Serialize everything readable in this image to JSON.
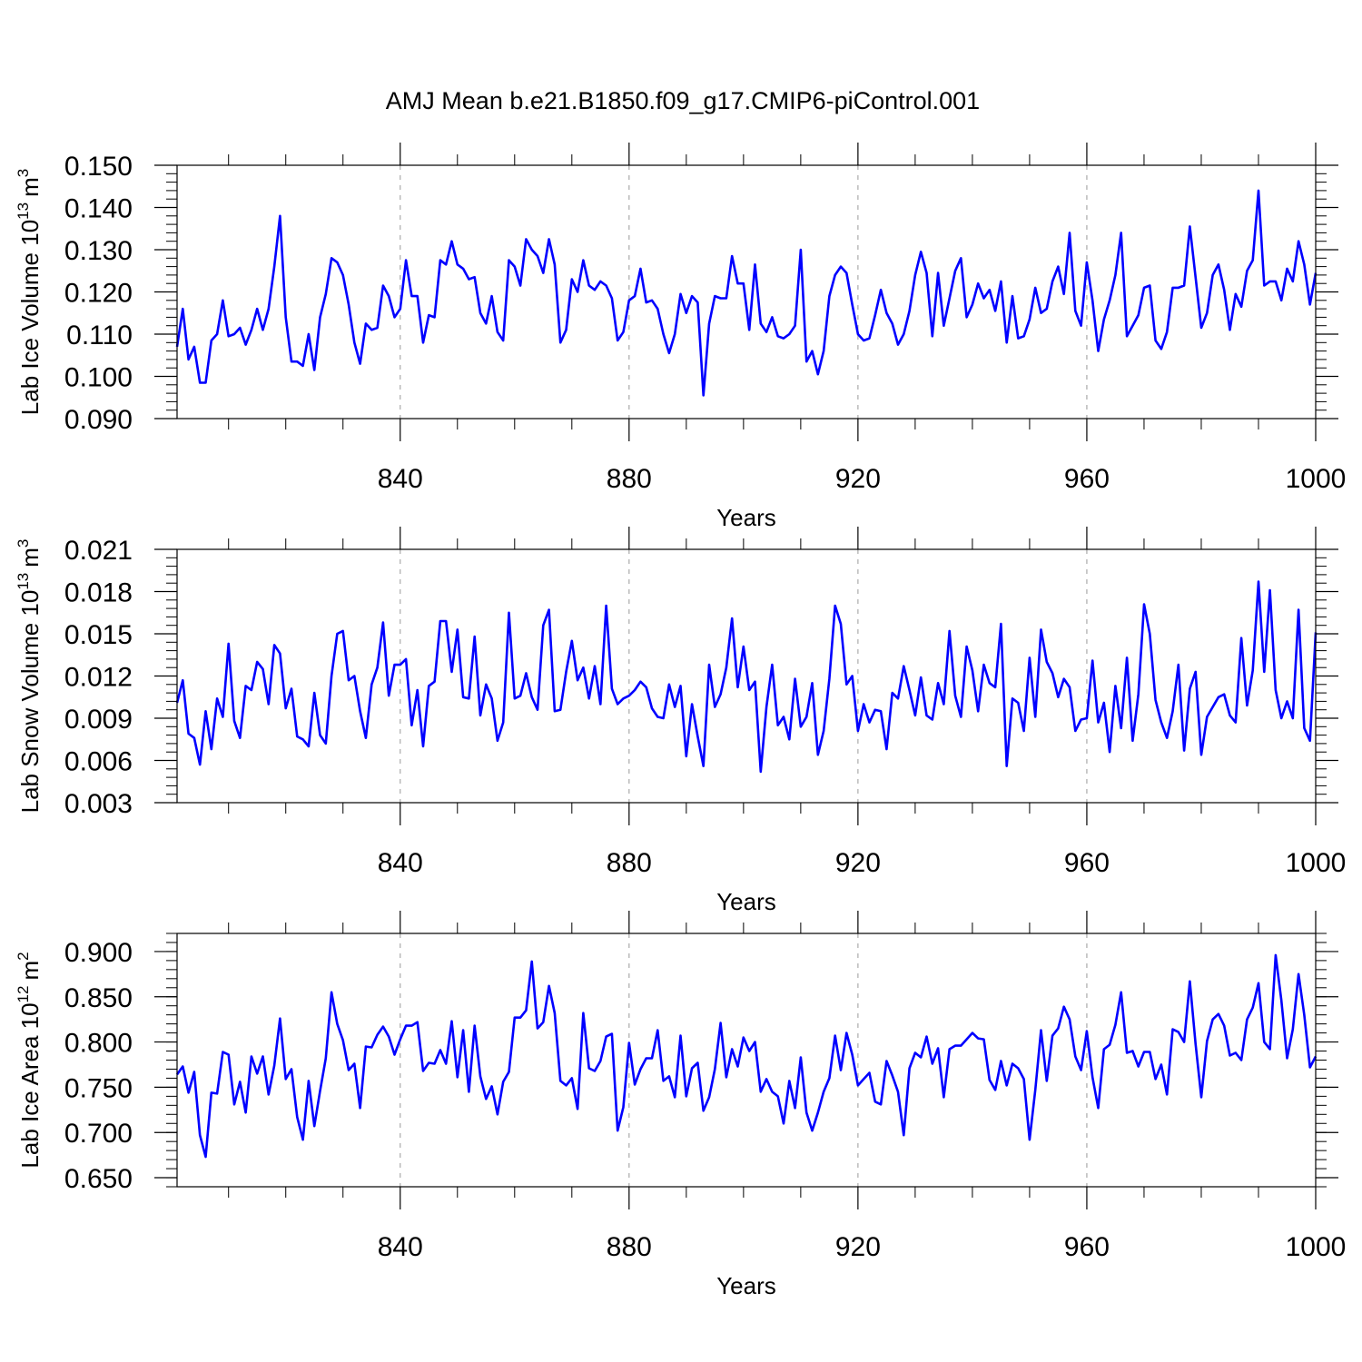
{
  "title": "AMJ Mean b.e21.B1850.f09_g17.CMIP6-piControl.001",
  "style": {
    "line_color": "#0000ff",
    "axis_color": "#000000",
    "grid_color": "#aaaaaa"
  },
  "chart_data": [
    {
      "type": "line",
      "ylabel_main": "Lab Ice Volume 10",
      "ylabel_exp": "13",
      "ylabel_unit": "m",
      "ylabel_unit_exp": "3",
      "xlabel": "Years",
      "xlim": [
        801,
        1000
      ],
      "ylim": [
        0.09,
        0.15
      ],
      "xticks": [
        840,
        880,
        920,
        960,
        1000
      ],
      "xtick_labels": [
        "840",
        "880",
        "920",
        "960",
        "1000"
      ],
      "yticks": [
        0.09,
        0.1,
        0.11,
        0.12,
        0.13,
        0.14,
        0.15
      ],
      "ytick_labels": [
        "0.090",
        "0.100",
        "0.110",
        "0.120",
        "0.130",
        "0.140",
        "0.150"
      ],
      "grid_x": true,
      "x_start": 801,
      "values": [
        0.107,
        0.116,
        0.104,
        0.107,
        0.0985,
        0.0985,
        0.1085,
        0.11,
        0.118,
        0.1095,
        0.11,
        0.1115,
        0.1075,
        0.111,
        0.116,
        0.111,
        0.116,
        0.126,
        0.138,
        0.114,
        0.1035,
        0.1035,
        0.1025,
        0.11,
        0.1015,
        0.114,
        0.1195,
        0.128,
        0.127,
        0.124,
        0.117,
        0.108,
        0.103,
        0.1125,
        0.111,
        0.1115,
        0.1215,
        0.119,
        0.114,
        0.116,
        0.1275,
        0.119,
        0.119,
        0.108,
        0.1145,
        0.114,
        0.1275,
        0.1265,
        0.132,
        0.1265,
        0.1255,
        0.123,
        0.1235,
        0.115,
        0.1125,
        0.119,
        0.1105,
        0.1085,
        0.1275,
        0.126,
        0.1215,
        0.1325,
        0.13,
        0.1285,
        0.1245,
        0.1325,
        0.1265,
        0.108,
        0.111,
        0.123,
        0.12,
        0.1275,
        0.1215,
        0.1205,
        0.1225,
        0.1215,
        0.1185,
        0.1085,
        0.1105,
        0.118,
        0.119,
        0.1255,
        0.1175,
        0.118,
        0.116,
        0.11,
        0.1055,
        0.11,
        0.1195,
        0.115,
        0.119,
        0.1175,
        0.0955,
        0.1125,
        0.119,
        0.1185,
        0.1185,
        0.1285,
        0.122,
        0.122,
        0.111,
        0.1265,
        0.1125,
        0.1105,
        0.114,
        0.1095,
        0.109,
        0.11,
        0.112,
        0.13,
        0.1035,
        0.106,
        0.1005,
        0.106,
        0.119,
        0.124,
        0.126,
        0.1245,
        0.117,
        0.11,
        0.1085,
        0.109,
        0.1145,
        0.1205,
        0.115,
        0.1125,
        0.1075,
        0.11,
        0.1155,
        0.124,
        0.1295,
        0.1245,
        0.1095,
        0.1245,
        0.112,
        0.1185,
        0.125,
        0.128,
        0.114,
        0.117,
        0.122,
        0.1185,
        0.1205,
        0.1155,
        0.1225,
        0.108,
        0.119,
        0.109,
        0.1095,
        0.1135,
        0.121,
        0.115,
        0.116,
        0.1225,
        0.126,
        0.1195,
        0.134,
        0.1155,
        0.112,
        0.127,
        0.118,
        0.106,
        0.1135,
        0.118,
        0.124,
        0.134,
        0.1095,
        0.112,
        0.1145,
        0.121,
        0.1215,
        0.1085,
        0.1065,
        0.1105,
        0.121,
        0.121,
        0.1215,
        0.1355,
        0.1235,
        0.1115,
        0.115,
        0.124,
        0.1265,
        0.1205,
        0.111,
        0.1195,
        0.1165,
        0.125,
        0.1275,
        0.144,
        0.1215,
        0.1225,
        0.1225,
        0.118,
        0.1255,
        0.1225,
        0.132,
        0.1265,
        0.117,
        0.1245
      ]
    },
    {
      "type": "line",
      "ylabel_main": "Lab Snow Volume 10",
      "ylabel_exp": "13",
      "ylabel_unit": "m",
      "ylabel_unit_exp": "3",
      "xlabel": "Years",
      "xlim": [
        801,
        1000
      ],
      "ylim": [
        0.003,
        0.021
      ],
      "xticks": [
        840,
        880,
        920,
        960,
        1000
      ],
      "xtick_labels": [
        "840",
        "880",
        "920",
        "960",
        "1000"
      ],
      "yticks": [
        0.003,
        0.006,
        0.009,
        0.012,
        0.015,
        0.018,
        0.021
      ],
      "ytick_labels": [
        "0.003",
        "0.006",
        "0.009",
        "0.012",
        "0.015",
        "0.018",
        "0.021"
      ],
      "grid_x": true,
      "x_start": 801,
      "values": [
        0.0101,
        0.0117,
        0.0079,
        0.0076,
        0.0057,
        0.0095,
        0.0068,
        0.0104,
        0.0091,
        0.0143,
        0.0088,
        0.0076,
        0.0113,
        0.011,
        0.013,
        0.0125,
        0.01,
        0.0142,
        0.0136,
        0.0097,
        0.0111,
        0.0077,
        0.0075,
        0.007,
        0.0108,
        0.0078,
        0.0072,
        0.012,
        0.015,
        0.0152,
        0.0117,
        0.012,
        0.0095,
        0.0076,
        0.0114,
        0.0126,
        0.0158,
        0.0106,
        0.0128,
        0.0128,
        0.0132,
        0.0085,
        0.011,
        0.007,
        0.0113,
        0.0116,
        0.0159,
        0.0159,
        0.0123,
        0.0153,
        0.0105,
        0.0104,
        0.0148,
        0.0092,
        0.0114,
        0.0104,
        0.0074,
        0.0087,
        0.0165,
        0.0104,
        0.0106,
        0.0122,
        0.0105,
        0.0096,
        0.0156,
        0.0167,
        0.0095,
        0.0096,
        0.0123,
        0.0145,
        0.0117,
        0.0126,
        0.0104,
        0.0127,
        0.01,
        0.017,
        0.0111,
        0.01,
        0.0104,
        0.0106,
        0.011,
        0.0116,
        0.0112,
        0.0097,
        0.0091,
        0.009,
        0.0114,
        0.0098,
        0.0113,
        0.0063,
        0.01,
        0.0077,
        0.0056,
        0.0128,
        0.0098,
        0.0107,
        0.0126,
        0.0161,
        0.0112,
        0.0141,
        0.011,
        0.0116,
        0.0052,
        0.0098,
        0.0128,
        0.0085,
        0.0091,
        0.0075,
        0.0118,
        0.0084,
        0.0091,
        0.0115,
        0.0064,
        0.0081,
        0.0118,
        0.017,
        0.0157,
        0.0114,
        0.012,
        0.0081,
        0.01,
        0.0087,
        0.0096,
        0.0095,
        0.0068,
        0.0108,
        0.0104,
        0.0127,
        0.011,
        0.0092,
        0.0119,
        0.0092,
        0.0089,
        0.0115,
        0.01,
        0.0152,
        0.0106,
        0.0091,
        0.0141,
        0.0124,
        0.0095,
        0.0128,
        0.0115,
        0.0112,
        0.0157,
        0.0056,
        0.0104,
        0.0101,
        0.0081,
        0.0133,
        0.0091,
        0.0153,
        0.013,
        0.0122,
        0.0105,
        0.0118,
        0.0112,
        0.0081,
        0.0089,
        0.009,
        0.0131,
        0.0087,
        0.0101,
        0.0066,
        0.0113,
        0.0083,
        0.0133,
        0.0074,
        0.0107,
        0.0171,
        0.015,
        0.0103,
        0.0087,
        0.0076,
        0.0095,
        0.0128,
        0.0067,
        0.0111,
        0.0123,
        0.0064,
        0.0091,
        0.0098,
        0.0105,
        0.0107,
        0.0092,
        0.0087,
        0.0147,
        0.0099,
        0.0124,
        0.0187,
        0.0123,
        0.0181,
        0.011,
        0.009,
        0.0102,
        0.009,
        0.0167,
        0.0083,
        0.0074,
        0.0151
      ]
    },
    {
      "type": "line",
      "ylabel_main": "Lab Ice Area 10",
      "ylabel_exp": "12",
      "ylabel_unit": "m",
      "ylabel_unit_exp": "2",
      "xlabel": "Years",
      "xlim": [
        801,
        1000
      ],
      "ylim": [
        0.64,
        0.92
      ],
      "xticks": [
        840,
        880,
        920,
        960,
        1000
      ],
      "xtick_labels": [
        "840",
        "880",
        "920",
        "960",
        "1000"
      ],
      "yticks": [
        0.65,
        0.7,
        0.75,
        0.8,
        0.85,
        0.9
      ],
      "ytick_labels": [
        "0.650",
        "0.700",
        "0.750",
        "0.800",
        "0.850",
        "0.900"
      ],
      "grid_x": true,
      "x_start": 801,
      "values": [
        0.764,
        0.773,
        0.744,
        0.767,
        0.697,
        0.673,
        0.744,
        0.743,
        0.789,
        0.786,
        0.731,
        0.756,
        0.722,
        0.784,
        0.765,
        0.784,
        0.742,
        0.774,
        0.826,
        0.759,
        0.77,
        0.717,
        0.692,
        0.757,
        0.707,
        0.746,
        0.782,
        0.855,
        0.82,
        0.802,
        0.769,
        0.776,
        0.727,
        0.795,
        0.794,
        0.808,
        0.817,
        0.806,
        0.786,
        0.803,
        0.818,
        0.818,
        0.822,
        0.768,
        0.777,
        0.776,
        0.791,
        0.776,
        0.823,
        0.761,
        0.813,
        0.745,
        0.818,
        0.762,
        0.737,
        0.751,
        0.72,
        0.756,
        0.767,
        0.827,
        0.827,
        0.835,
        0.889,
        0.815,
        0.822,
        0.862,
        0.832,
        0.757,
        0.752,
        0.76,
        0.726,
        0.832,
        0.771,
        0.768,
        0.779,
        0.806,
        0.809,
        0.702,
        0.728,
        0.799,
        0.753,
        0.77,
        0.782,
        0.782,
        0.813,
        0.757,
        0.762,
        0.739,
        0.807,
        0.74,
        0.771,
        0.777,
        0.724,
        0.739,
        0.77,
        0.821,
        0.761,
        0.792,
        0.773,
        0.805,
        0.79,
        0.8,
        0.745,
        0.759,
        0.745,
        0.74,
        0.71,
        0.757,
        0.727,
        0.783,
        0.722,
        0.702,
        0.722,
        0.745,
        0.76,
        0.807,
        0.769,
        0.81,
        0.786,
        0.752,
        0.759,
        0.766,
        0.734,
        0.731,
        0.779,
        0.763,
        0.745,
        0.697,
        0.771,
        0.788,
        0.783,
        0.806,
        0.776,
        0.793,
        0.739,
        0.792,
        0.796,
        0.796,
        0.803,
        0.81,
        0.804,
        0.803,
        0.758,
        0.747,
        0.779,
        0.752,
        0.776,
        0.771,
        0.759,
        0.692,
        0.747,
        0.813,
        0.757,
        0.807,
        0.815,
        0.839,
        0.825,
        0.784,
        0.769,
        0.812,
        0.761,
        0.727,
        0.792,
        0.797,
        0.819,
        0.855,
        0.788,
        0.79,
        0.773,
        0.789,
        0.789,
        0.759,
        0.775,
        0.742,
        0.814,
        0.811,
        0.8,
        0.867,
        0.798,
        0.739,
        0.801,
        0.825,
        0.831,
        0.818,
        0.785,
        0.788,
        0.78,
        0.825,
        0.838,
        0.865,
        0.8,
        0.792,
        0.896,
        0.846,
        0.782,
        0.814,
        0.875,
        0.83,
        0.772,
        0.784
      ]
    }
  ]
}
